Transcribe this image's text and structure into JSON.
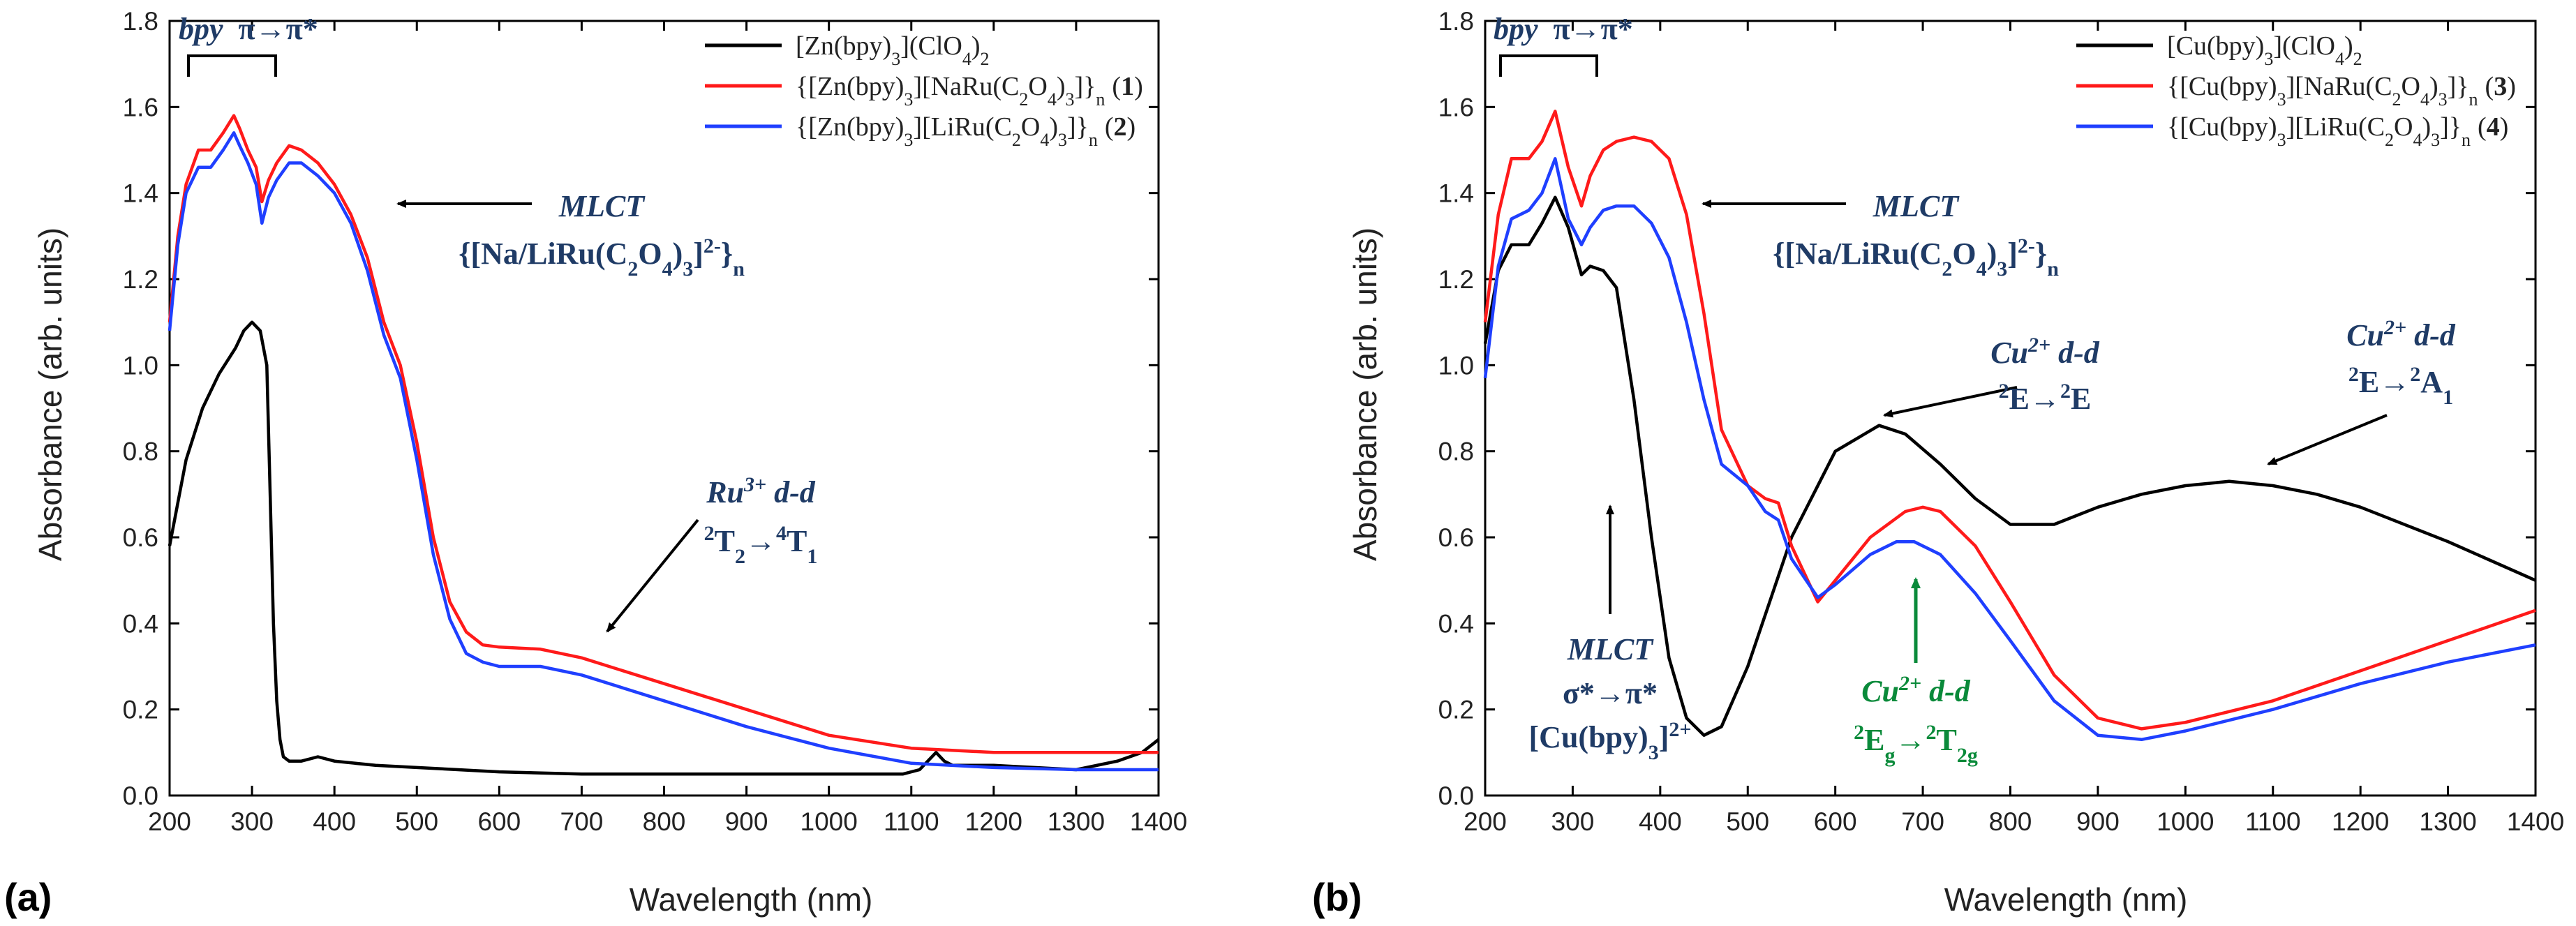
{
  "chart_data": [
    {
      "type": "line",
      "panel_label": "(a)",
      "xlabel": "Wavelength (nm)",
      "ylabel": "Absorbance (arb. units)",
      "xlim": [
        200,
        1400
      ],
      "ylim": [
        0.0,
        1.8
      ],
      "xticks": [
        200,
        300,
        400,
        500,
        600,
        700,
        800,
        900,
        1000,
        1100,
        1200,
        1300,
        1400
      ],
      "yticks": [
        0.0,
        0.2,
        0.4,
        0.6,
        0.8,
        1.0,
        1.2,
        1.4,
        1.6,
        1.8
      ],
      "legend_position": "top-right",
      "series": [
        {
          "name": "[Zn(bpy)3](ClO4)2",
          "legend_html": "[Zn(bpy)<tspan baseline-shift='sub' font-size='26'>3</tspan>](ClO<tspan baseline-shift='sub' font-size='26'>4</tspan>)<tspan baseline-shift='sub' font-size='26'>2</tspan>",
          "color": "#000000",
          "x": [
            200,
            220,
            240,
            260,
            280,
            290,
            300,
            310,
            318,
            322,
            326,
            330,
            334,
            338,
            345,
            360,
            380,
            400,
            450,
            500,
            550,
            600,
            700,
            800,
            900,
            1000,
            1090,
            1110,
            1120,
            1130,
            1140,
            1150,
            1200,
            1300,
            1350,
            1380,
            1400
          ],
          "y": [
            0.58,
            0.78,
            0.9,
            0.98,
            1.04,
            1.08,
            1.1,
            1.08,
            1.0,
            0.7,
            0.4,
            0.22,
            0.13,
            0.09,
            0.08,
            0.08,
            0.09,
            0.08,
            0.07,
            0.065,
            0.06,
            0.055,
            0.05,
            0.05,
            0.05,
            0.05,
            0.05,
            0.06,
            0.08,
            0.1,
            0.08,
            0.07,
            0.07,
            0.06,
            0.08,
            0.1,
            0.13
          ]
        },
        {
          "name": "{[Zn(bpy)3][NaRu(C2O4)3]}n (1)",
          "legend_html": "{[Zn(bpy)<tspan baseline-shift='sub' font-size='26'>3</tspan>][NaRu(C<tspan baseline-shift='sub' font-size='26'>2</tspan>O<tspan baseline-shift='sub' font-size='26'>4</tspan>)<tspan baseline-shift='sub' font-size='26'>3</tspan>]}<tspan baseline-shift='sub' font-size='26'>n</tspan> (<tspan font-weight='bold'>1</tspan>)",
          "color": "#ff1a1a",
          "x": [
            200,
            210,
            220,
            235,
            250,
            265,
            278,
            285,
            295,
            305,
            312,
            320,
            330,
            345,
            360,
            380,
            400,
            420,
            440,
            460,
            480,
            500,
            520,
            540,
            560,
            580,
            600,
            650,
            700,
            800,
            900,
            1000,
            1100,
            1200,
            1300,
            1400
          ],
          "y": [
            1.1,
            1.3,
            1.42,
            1.5,
            1.5,
            1.54,
            1.58,
            1.55,
            1.5,
            1.46,
            1.38,
            1.43,
            1.47,
            1.51,
            1.5,
            1.47,
            1.42,
            1.35,
            1.25,
            1.1,
            1.0,
            0.82,
            0.6,
            0.45,
            0.38,
            0.35,
            0.345,
            0.34,
            0.32,
            0.26,
            0.2,
            0.14,
            0.11,
            0.1,
            0.1,
            0.1
          ]
        },
        {
          "name": "{[Zn(bpy)3][LiRu(C2O4)3]}n (2)",
          "legend_html": "{[Zn(bpy)<tspan baseline-shift='sub' font-size='26'>3</tspan>][LiRu(C<tspan baseline-shift='sub' font-size='26'>2</tspan>O<tspan baseline-shift='sub' font-size='26'>4</tspan>)<tspan baseline-shift='sub' font-size='26'>3</tspan>]}<tspan baseline-shift='sub' font-size='26'>n</tspan> (<tspan font-weight='bold'>2</tspan>)",
          "color": "#1f3fff",
          "x": [
            200,
            210,
            220,
            235,
            250,
            265,
            278,
            285,
            295,
            305,
            312,
            320,
            330,
            345,
            360,
            380,
            400,
            420,
            440,
            460,
            480,
            500,
            520,
            540,
            560,
            580,
            600,
            650,
            700,
            800,
            900,
            1000,
            1100,
            1200,
            1300,
            1400
          ],
          "y": [
            1.08,
            1.28,
            1.4,
            1.46,
            1.46,
            1.5,
            1.54,
            1.51,
            1.47,
            1.42,
            1.33,
            1.39,
            1.43,
            1.47,
            1.47,
            1.44,
            1.4,
            1.33,
            1.22,
            1.07,
            0.97,
            0.78,
            0.56,
            0.41,
            0.33,
            0.31,
            0.3,
            0.3,
            0.28,
            0.22,
            0.16,
            0.11,
            0.075,
            0.065,
            0.06,
            0.06
          ]
        }
      ],
      "annotations": [
        {
          "id": "bpy",
          "italic_part": "bpy",
          "text": "π→π*"
        },
        {
          "id": "mlct",
          "line1": "MLCT",
          "line2": "{[Na/LiRu(C2O4)3]2-}n"
        },
        {
          "id": "ru",
          "line1": "Ru3+ d-d",
          "line2": "2T2→4T1"
        }
      ]
    },
    {
      "type": "line",
      "panel_label": "(b)",
      "xlabel": "Wavelength (nm)",
      "ylabel": "Absorbance (arb. units)",
      "xlim": [
        200,
        1400
      ],
      "ylim": [
        0.0,
        1.8
      ],
      "xticks": [
        200,
        300,
        400,
        500,
        600,
        700,
        800,
        900,
        1000,
        1100,
        1200,
        1300,
        1400
      ],
      "yticks": [
        0.0,
        0.2,
        0.4,
        0.6,
        0.8,
        1.0,
        1.2,
        1.4,
        1.6,
        1.8
      ],
      "legend_position": "top-right",
      "series": [
        {
          "name": "[Cu(bpy)3](ClO4)2",
          "color": "#000000",
          "x": [
            200,
            215,
            230,
            250,
            265,
            280,
            295,
            310,
            320,
            335,
            350,
            370,
            390,
            410,
            430,
            450,
            470,
            500,
            550,
            600,
            650,
            680,
            720,
            760,
            800,
            850,
            900,
            950,
            1000,
            1050,
            1100,
            1150,
            1200,
            1300,
            1400
          ],
          "y": [
            1.05,
            1.22,
            1.28,
            1.28,
            1.33,
            1.39,
            1.32,
            1.21,
            1.23,
            1.22,
            1.18,
            0.92,
            0.6,
            0.32,
            0.18,
            0.14,
            0.16,
            0.3,
            0.6,
            0.8,
            0.86,
            0.84,
            0.77,
            0.69,
            0.63,
            0.63,
            0.67,
            0.7,
            0.72,
            0.73,
            0.72,
            0.7,
            0.67,
            0.59,
            0.5
          ]
        },
        {
          "name": "{[Cu(bpy)3][NaRu(C2O4)3]}n (3)",
          "color": "#ff1a1a",
          "x": [
            200,
            215,
            230,
            250,
            265,
            280,
            295,
            310,
            320,
            335,
            350,
            370,
            390,
            410,
            430,
            450,
            470,
            500,
            520,
            535,
            550,
            580,
            600,
            640,
            680,
            700,
            720,
            760,
            800,
            850,
            900,
            950,
            1000,
            1100,
            1200,
            1300,
            1400
          ],
          "y": [
            1.1,
            1.35,
            1.48,
            1.48,
            1.52,
            1.59,
            1.46,
            1.37,
            1.44,
            1.5,
            1.52,
            1.53,
            1.52,
            1.48,
            1.35,
            1.12,
            0.85,
            0.72,
            0.69,
            0.68,
            0.58,
            0.45,
            0.5,
            0.6,
            0.66,
            0.67,
            0.66,
            0.58,
            0.45,
            0.28,
            0.18,
            0.155,
            0.17,
            0.22,
            0.29,
            0.36,
            0.43
          ]
        },
        {
          "name": "{[Cu(bpy)3][LiRu(C2O4)3]}n (4)",
          "color": "#1f3fff",
          "x": [
            200,
            215,
            230,
            250,
            265,
            280,
            295,
            310,
            320,
            335,
            350,
            370,
            390,
            410,
            430,
            450,
            470,
            500,
            520,
            535,
            550,
            580,
            600,
            640,
            670,
            690,
            720,
            760,
            800,
            850,
            900,
            950,
            1000,
            1100,
            1200,
            1300,
            1400
          ],
          "y": [
            0.97,
            1.23,
            1.34,
            1.36,
            1.4,
            1.48,
            1.34,
            1.28,
            1.32,
            1.36,
            1.37,
            1.37,
            1.33,
            1.25,
            1.1,
            0.92,
            0.77,
            0.72,
            0.66,
            0.64,
            0.55,
            0.46,
            0.49,
            0.56,
            0.59,
            0.59,
            0.56,
            0.47,
            0.36,
            0.22,
            0.14,
            0.13,
            0.15,
            0.2,
            0.26,
            0.31,
            0.35
          ]
        }
      ],
      "annotations": [
        {
          "id": "bpy",
          "italic_part": "bpy",
          "text": "π→π*"
        },
        {
          "id": "mlct",
          "line1": "MLCT",
          "line2": "{[Na/LiRu(C2O4)3]2-}n"
        },
        {
          "id": "cu-dd-1",
          "line1": "Cu2+ d-d",
          "line2": "2E→2E"
        },
        {
          "id": "cu-dd-2",
          "line1": "Cu2+ d-d",
          "line2": "2E→2A1"
        },
        {
          "id": "mlct-cu",
          "line1": "MLCT",
          "line2": "σ*→π*",
          "line3": "[Cu(bpy)3]2+"
        },
        {
          "id": "cu-green",
          "line1": "Cu2+ d-d",
          "line2": "2Eg→2T2g",
          "color": "#0a8a3a"
        }
      ]
    }
  ]
}
